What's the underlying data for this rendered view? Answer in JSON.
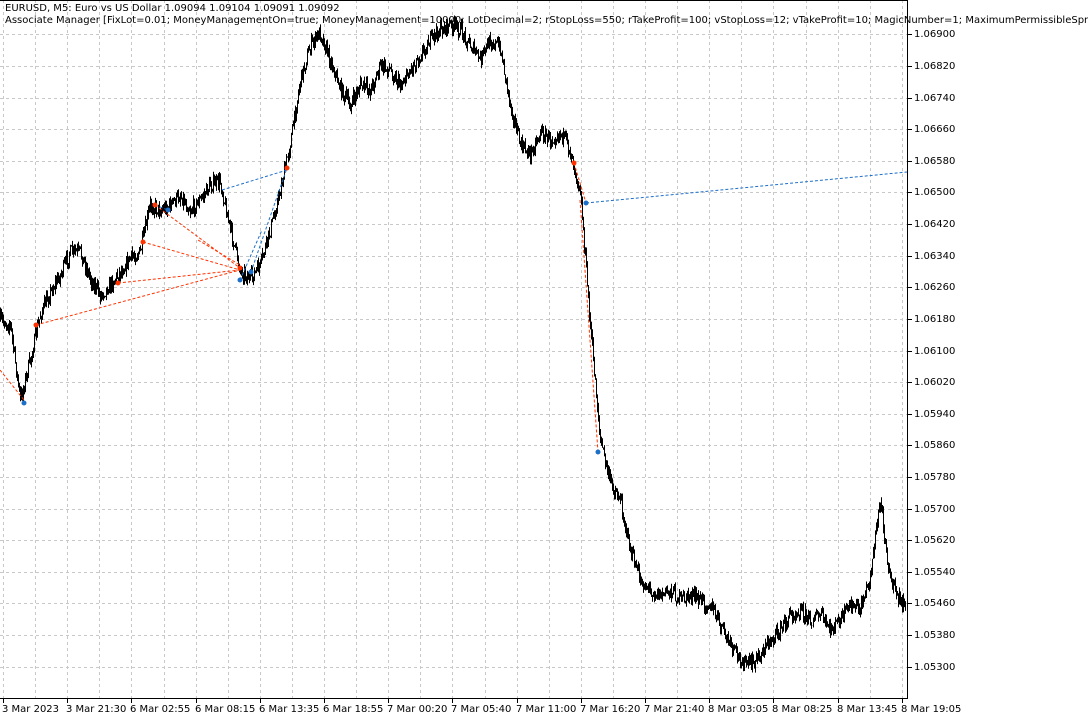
{
  "header": {
    "line1": "EURUSD, M5:  Euro vs US Dollar  1.09094 1.09104 1.09091 1.09092",
    "line2": "Associate Manager [FixLot=0.01; MoneyManagementOn=true; MoneyManagement=10000; LotDecimal=2; rStopLoss=550; rTakeProfit=100; vStopLoss=12; vTakeProfit=10; MagicNumber=1; MaximumPermissibleSpr"
  },
  "chart_data": {
    "type": "line",
    "symbol": "EURUSD",
    "timeframe": "M5",
    "description": "Euro vs US Dollar",
    "ohlc_header": [
      1.09094,
      1.09104,
      1.09091,
      1.09092
    ],
    "ylim": [
      1.0522,
      1.0695
    ],
    "y_ticks": [
      "1.06900",
      "1.06820",
      "1.06740",
      "1.06660",
      "1.06580",
      "1.06500",
      "1.06420",
      "1.06340",
      "1.06260",
      "1.06180",
      "1.06100",
      "1.06020",
      "1.05940",
      "1.05860",
      "1.05780",
      "1.05700",
      "1.05620",
      "1.05540",
      "1.05460",
      "1.05380",
      "1.05300"
    ],
    "x_ticks": [
      "3 Mar 2023",
      "3 Mar 21:30",
      "6 Mar 02:55",
      "6 Mar 08:15",
      "6 Mar 13:35",
      "6 Mar 18:55",
      "7 Mar 00:20",
      "7 Mar 05:40",
      "7 Mar 11:00",
      "7 Mar 16:20",
      "7 Mar 21:40",
      "8 Mar 03:05",
      "8 Mar 08:25",
      "8 Mar 13:45",
      "8 Mar 19:05"
    ],
    "grid": true,
    "series": [
      {
        "values": [
          1.06177,
          1.06165,
          1.05975,
          1.06076,
          1.0619,
          1.06248,
          1.06291,
          1.06349,
          1.06349,
          1.06283,
          1.0624,
          1.06266,
          1.06299,
          1.06334,
          1.06349,
          1.06468,
          1.06455,
          1.06468,
          1.06493,
          1.06455,
          1.06481,
          1.06519,
          1.06526,
          1.06407,
          1.06304,
          1.06281,
          1.06316,
          1.06405,
          1.06506,
          1.06625,
          1.06784,
          1.0687,
          1.06906,
          1.06835,
          1.06764,
          1.06719,
          1.06772,
          1.06759,
          1.0682,
          1.0681,
          1.06772,
          1.0681,
          1.06848,
          1.06886,
          1.06911,
          1.06924,
          1.06911,
          1.06873,
          1.06835,
          1.06886,
          1.06865,
          1.06724,
          1.0662,
          1.06597,
          1.06653,
          1.06633,
          1.06653,
          1.06607,
          1.06506,
          1.06165,
          1.05874,
          1.05767,
          1.05722,
          1.05595,
          1.05519,
          1.05494,
          1.05481,
          1.05494,
          1.05469,
          1.05481,
          1.05469,
          1.05456,
          1.05406,
          1.05355,
          1.05317,
          1.05304,
          1.0533,
          1.05368,
          1.05393,
          1.05431,
          1.05444,
          1.05418,
          1.05431,
          1.05393,
          1.05418,
          1.05456,
          1.05444,
          1.05532,
          1.05722,
          1.05519,
          1.05469
        ]
      }
    ],
    "colors": {
      "price": "#000000",
      "sell_trade": "#ff3300",
      "buy_trade": "#1e6fc8",
      "grid": "#c8c8c8"
    }
  }
}
